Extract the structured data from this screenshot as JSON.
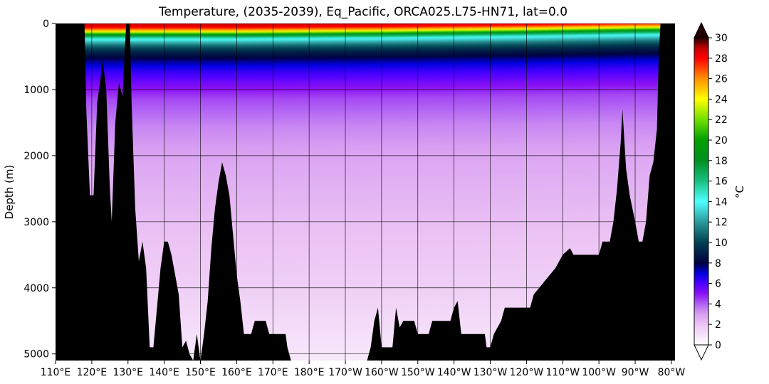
{
  "chart_data": {
    "type": "heatmap",
    "title": "Temperature, (2035-2039), Eq_Pacific, ORCA025.L75-HN71, lat=0.0",
    "ylabel": "Depth (m)",
    "xlabel": "",
    "x_ticks": [
      {
        "value": 110,
        "label": "110°E"
      },
      {
        "value": 120,
        "label": "120°E"
      },
      {
        "value": 130,
        "label": "130°E"
      },
      {
        "value": 140,
        "label": "140°E"
      },
      {
        "value": 150,
        "label": "150°E"
      },
      {
        "value": 160,
        "label": "160°E"
      },
      {
        "value": 170,
        "label": "170°E"
      },
      {
        "value": 180,
        "label": "180°E"
      },
      {
        "value": 190,
        "label": "170°W"
      },
      {
        "value": 200,
        "label": "160°W"
      },
      {
        "value": 210,
        "label": "150°W"
      },
      {
        "value": 220,
        "label": "140°W"
      },
      {
        "value": 230,
        "label": "130°W"
      },
      {
        "value": 240,
        "label": "120°W"
      },
      {
        "value": 250,
        "label": "110°W"
      },
      {
        "value": 260,
        "label": "100°W"
      },
      {
        "value": 270,
        "label": "90°W"
      },
      {
        "value": 280,
        "label": "80°W"
      }
    ],
    "y_ticks": [
      {
        "value": 0,
        "label": "0"
      },
      {
        "value": 1000,
        "label": "1000"
      },
      {
        "value": 2000,
        "label": "2000"
      },
      {
        "value": 3000,
        "label": "3000"
      },
      {
        "value": 4000,
        "label": "4000"
      },
      {
        "value": 5000,
        "label": "5000"
      }
    ],
    "xlim": [
      110,
      281
    ],
    "ylim": [
      5100,
      0
    ],
    "grid": true,
    "colorbar": {
      "label": "°C",
      "min": 0,
      "max": 30,
      "ticks": [
        "0",
        "2",
        "4",
        "6",
        "8",
        "10",
        "12",
        "14",
        "16",
        "18",
        "20",
        "22",
        "24",
        "26",
        "28",
        "30"
      ],
      "extend": "both",
      "stops": [
        {
          "value": 0,
          "color": "#ffffff"
        },
        {
          "value": 2,
          "color": "#ecc4f4"
        },
        {
          "value": 3,
          "color": "#d9a0f2"
        },
        {
          "value": 4,
          "color": "#b060f4"
        },
        {
          "value": 5,
          "color": "#8a10f4"
        },
        {
          "value": 6,
          "color": "#4a00ff"
        },
        {
          "value": 7,
          "color": "#0000e0"
        },
        {
          "value": 8,
          "color": "#000040"
        },
        {
          "value": 10,
          "color": "#004050"
        },
        {
          "value": 12,
          "color": "#2a9a9a"
        },
        {
          "value": 14,
          "color": "#50ffff"
        },
        {
          "value": 16,
          "color": "#18c080"
        },
        {
          "value": 18,
          "color": "#009020"
        },
        {
          "value": 20,
          "color": "#00a000"
        },
        {
          "value": 22,
          "color": "#70e000"
        },
        {
          "value": 24,
          "color": "#ffff00"
        },
        {
          "value": 26,
          "color": "#ff9000"
        },
        {
          "value": 28,
          "color": "#ff0000"
        },
        {
          "value": 29,
          "color": "#c00000"
        },
        {
          "value": 30,
          "color": "#200000"
        }
      ]
    },
    "temperature_profile": [
      {
        "depth": 0,
        "temp": 29
      },
      {
        "depth": 60,
        "temp": 28
      },
      {
        "depth": 120,
        "temp": 24
      },
      {
        "depth": 170,
        "temp": 18
      },
      {
        "depth": 230,
        "temp": 14
      },
      {
        "depth": 320,
        "temp": 11
      },
      {
        "depth": 420,
        "temp": 9
      },
      {
        "depth": 550,
        "temp": 7.5
      },
      {
        "depth": 700,
        "temp": 6.3
      },
      {
        "depth": 900,
        "temp": 5.2
      },
      {
        "depth": 1100,
        "temp": 4.3
      },
      {
        "depth": 1500,
        "temp": 3.4
      },
      {
        "depth": 2000,
        "temp": 2.8
      },
      {
        "depth": 3000,
        "temp": 2.1
      },
      {
        "depth": 4000,
        "temp": 1.5
      },
      {
        "depth": 4500,
        "temp": 1.1
      },
      {
        "depth": 5100,
        "temp": 0.6
      }
    ],
    "thermocline_tilt": {
      "x": [
        110,
        160,
        200,
        240,
        270,
        281
      ],
      "shift_m": [
        0,
        0,
        -15,
        -40,
        -65,
        -70
      ]
    },
    "bathymetry": [
      [
        110.0,
        0
      ],
      [
        118.0,
        0
      ],
      [
        118.5,
        1300
      ],
      [
        119.5,
        2600
      ],
      [
        120.5,
        2600
      ],
      [
        121.5,
        1200
      ],
      [
        122.5,
        800
      ],
      [
        123.0,
        550
      ],
      [
        124.0,
        1000
      ],
      [
        125.0,
        2500
      ],
      [
        125.5,
        3000
      ],
      [
        126.5,
        1500
      ],
      [
        127.5,
        900
      ],
      [
        128.5,
        1100
      ],
      [
        129.5,
        0
      ],
      [
        130.5,
        0
      ],
      [
        131.0,
        1200
      ],
      [
        132.0,
        2800
      ],
      [
        133.0,
        3600
      ],
      [
        134.0,
        3300
      ],
      [
        135.0,
        3700
      ],
      [
        136.0,
        4900
      ],
      [
        137.0,
        4900
      ],
      [
        138.0,
        4300
      ],
      [
        139.0,
        3700
      ],
      [
        140.0,
        3300
      ],
      [
        141.0,
        3300
      ],
      [
        142.0,
        3500
      ],
      [
        143.0,
        3800
      ],
      [
        144.0,
        4100
      ],
      [
        145.0,
        4900
      ],
      [
        146.0,
        4800
      ],
      [
        147.0,
        5000
      ],
      [
        148.0,
        5100
      ],
      [
        149.0,
        4700
      ],
      [
        150.0,
        5100
      ],
      [
        151.0,
        4700
      ],
      [
        152.0,
        4200
      ],
      [
        153.0,
        3400
      ],
      [
        154.0,
        2800
      ],
      [
        155.0,
        2400
      ],
      [
        156.0,
        2100
      ],
      [
        157.0,
        2300
      ],
      [
        158.0,
        2600
      ],
      [
        159.0,
        3200
      ],
      [
        160.0,
        3800
      ],
      [
        161.0,
        4200
      ],
      [
        162.0,
        4700
      ],
      [
        164.0,
        4700
      ],
      [
        165.0,
        4500
      ],
      [
        168.0,
        4500
      ],
      [
        169.0,
        4700
      ],
      [
        173.5,
        4700
      ],
      [
        174.0,
        4900
      ],
      [
        175.0,
        5100
      ],
      [
        176.0,
        5100
      ],
      [
        196.0,
        5100
      ],
      [
        197.0,
        4900
      ],
      [
        198.0,
        4500
      ],
      [
        199.0,
        4300
      ],
      [
        199.5,
        4600
      ],
      [
        200.0,
        4900
      ],
      [
        203.0,
        4900
      ],
      [
        204.0,
        4300
      ],
      [
        205.0,
        4600
      ],
      [
        206.0,
        4500
      ],
      [
        209.0,
        4500
      ],
      [
        210.0,
        4700
      ],
      [
        213.0,
        4700
      ],
      [
        214.0,
        4500
      ],
      [
        219.0,
        4500
      ],
      [
        220.0,
        4300
      ],
      [
        221.0,
        4200
      ],
      [
        222.0,
        4700
      ],
      [
        228.5,
        4700
      ],
      [
        229.0,
        4900
      ],
      [
        230.0,
        4900
      ],
      [
        231.0,
        4700
      ],
      [
        233.0,
        4500
      ],
      [
        234.0,
        4300
      ],
      [
        241.0,
        4300
      ],
      [
        242.0,
        4100
      ],
      [
        245.0,
        3900
      ],
      [
        248.0,
        3700
      ],
      [
        250.0,
        3500
      ],
      [
        252.0,
        3400
      ],
      [
        253.0,
        3500
      ],
      [
        260.0,
        3500
      ],
      [
        261.0,
        3300
      ],
      [
        263.0,
        3300
      ],
      [
        264.0,
        3000
      ],
      [
        265.0,
        2500
      ],
      [
        266.0,
        1800
      ],
      [
        266.5,
        1300
      ],
      [
        267.5,
        2200
      ],
      [
        268.5,
        2600
      ],
      [
        270.0,
        3000
      ],
      [
        271.0,
        3300
      ],
      [
        272.0,
        3300
      ],
      [
        273.0,
        3000
      ],
      [
        274.0,
        2300
      ],
      [
        275.0,
        2100
      ],
      [
        276.0,
        1600
      ],
      [
        276.5,
        500
      ],
      [
        277.0,
        0
      ],
      [
        281.0,
        0
      ]
    ]
  }
}
